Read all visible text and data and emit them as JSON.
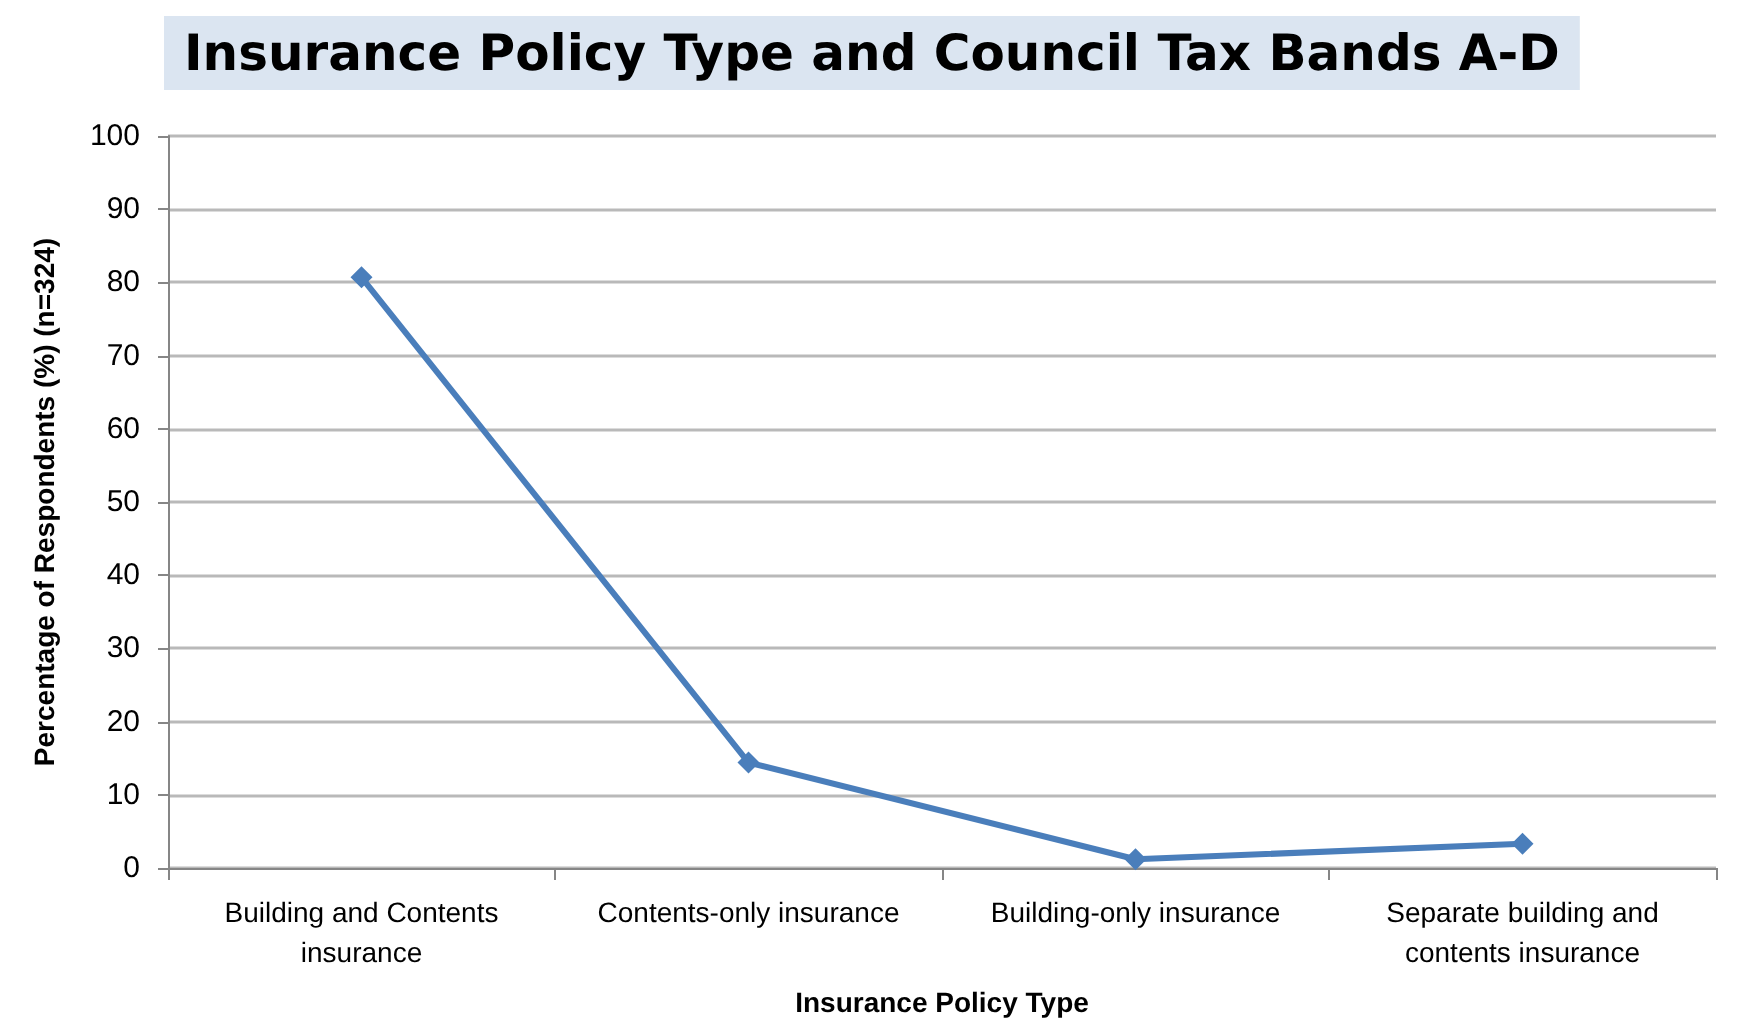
{
  "chart_data": {
    "type": "line",
    "title": "Insurance Policy Type and Council Tax Bands A-D",
    "xlabel": "Insurance Policy Type",
    "ylabel": "Percentage of Respondents (%) (n=324)",
    "categories": [
      "Building and Contents insurance",
      "Contents-only insurance",
      "Building-only insurance",
      "Separate building and contents insurance"
    ],
    "series": [
      {
        "color": "#4a7ebb",
        "values": [
          80.7,
          14.4,
          1.2,
          3.3
        ]
      }
    ],
    "ylim": [
      0,
      100
    ],
    "yticks": [
      0,
      10,
      20,
      30,
      40,
      50,
      60,
      70,
      80,
      90,
      100
    ],
    "grid": "y",
    "marker": "diamond",
    "line_style": "solid"
  }
}
